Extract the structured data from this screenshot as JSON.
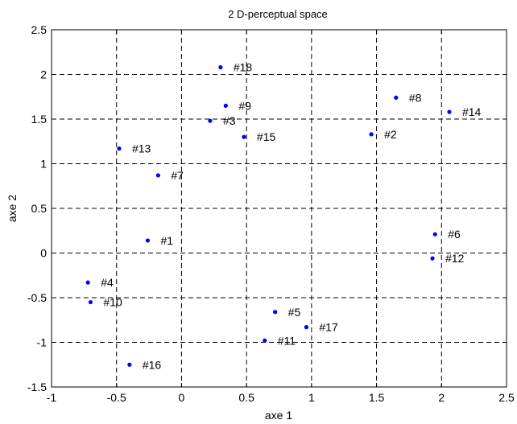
{
  "chart_data": {
    "type": "scatter",
    "title": "2 D-perceptual space",
    "xlabel": "axe 1",
    "ylabel": "axe 2",
    "xlim": [
      -1,
      2.5
    ],
    "ylim": [
      -1.5,
      2.5
    ],
    "xticks": [
      -1,
      -0.5,
      0,
      0.5,
      1,
      1.5,
      2,
      2.5
    ],
    "xtick_labels": [
      "-1",
      "-0.5",
      "0",
      "0.5",
      "1",
      "1.5",
      "2",
      "2.5"
    ],
    "yticks": [
      -1.5,
      -1,
      -0.5,
      0,
      0.5,
      1,
      1.5,
      2,
      2.5
    ],
    "ytick_labels": [
      "-1.5",
      "-1",
      "-0.5",
      "0",
      "0.5",
      "1",
      "1.5",
      "2",
      "2.5"
    ],
    "grid": true,
    "marker_color": "#0000ff",
    "points": [
      {
        "label": "#1",
        "x": -0.26,
        "y": 0.14
      },
      {
        "label": "#2",
        "x": 1.46,
        "y": 1.33
      },
      {
        "label": "#3",
        "x": 0.22,
        "y": 1.48
      },
      {
        "label": "#4",
        "x": -0.72,
        "y": -0.33
      },
      {
        "label": "#5",
        "x": 0.72,
        "y": -0.66
      },
      {
        "label": "#6",
        "x": 1.95,
        "y": 0.21
      },
      {
        "label": "#7",
        "x": -0.18,
        "y": 0.87
      },
      {
        "label": "#8",
        "x": 1.65,
        "y": 1.74
      },
      {
        "label": "#9",
        "x": 0.34,
        "y": 1.65
      },
      {
        "label": "#10",
        "x": -0.7,
        "y": -0.55
      },
      {
        "label": "#11",
        "x": 0.64,
        "y": -0.98
      },
      {
        "label": "#12",
        "x": 1.93,
        "y": -0.06
      },
      {
        "label": "#13",
        "x": -0.48,
        "y": 1.17
      },
      {
        "label": "#14",
        "x": 2.06,
        "y": 1.58
      },
      {
        "label": "#15",
        "x": 0.48,
        "y": 1.3
      },
      {
        "label": "#16",
        "x": -0.4,
        "y": -1.25
      },
      {
        "label": "#17",
        "x": 0.96,
        "y": -0.83
      },
      {
        "label": "#18",
        "x": 0.3,
        "y": 2.08
      }
    ]
  }
}
